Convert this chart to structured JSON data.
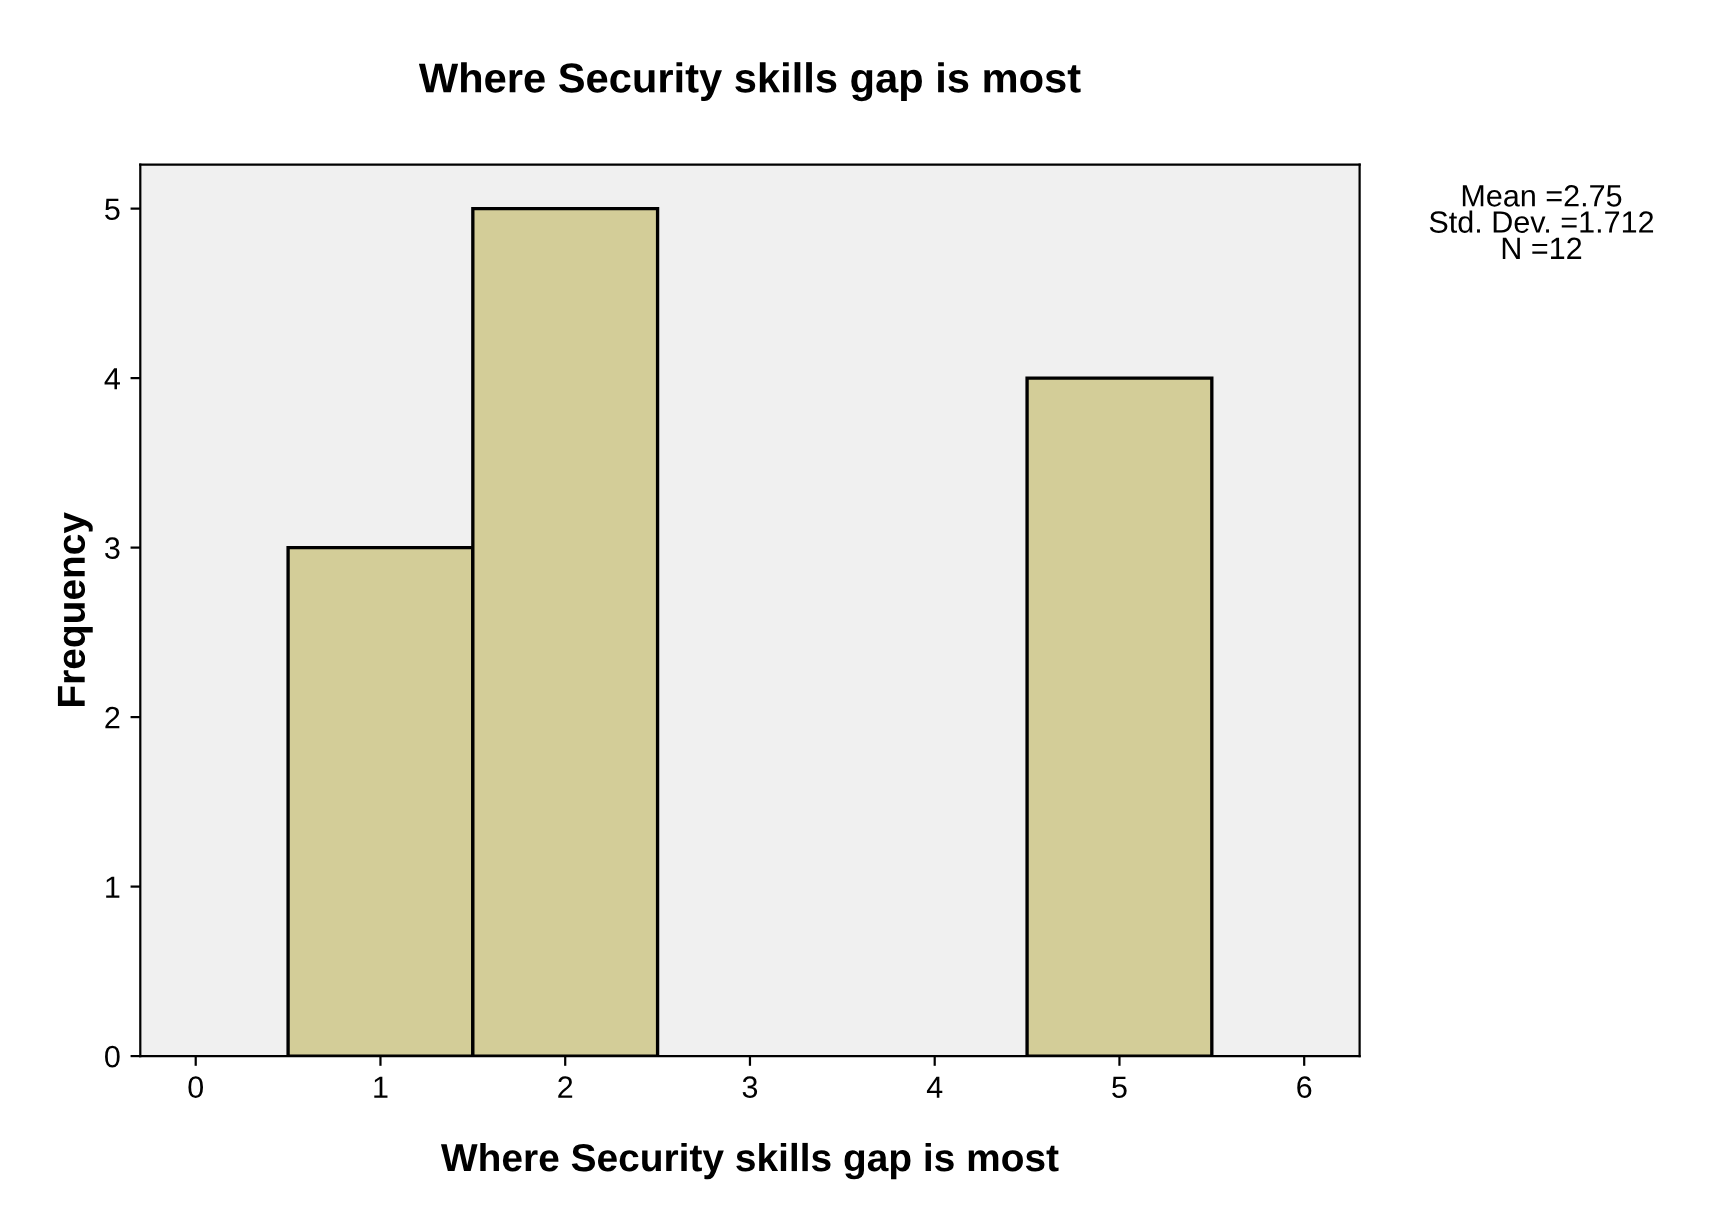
{
  "chart_data": {
    "type": "histogram",
    "title": "Where Security skills gap is most",
    "xlabel": "Where Security skills gap is most",
    "ylabel": "Frequency",
    "bins": [
      0.5,
      1.5,
      2.5,
      3.5,
      4.5,
      5.5
    ],
    "values": [
      3,
      5,
      0,
      0,
      4
    ],
    "color": "#d3cd98",
    "xlim": [
      -0.3,
      6.3
    ],
    "xticks": [
      0,
      1,
      2,
      3,
      4,
      5,
      6
    ],
    "ylim": [
      0,
      5.26
    ],
    "yticks": [
      0,
      1,
      2,
      3,
      4,
      5
    ],
    "grid": false,
    "legend": false,
    "annotations": [
      "Mean =2.75\nStd. Dev. =1.712\nN =12"
    ]
  }
}
